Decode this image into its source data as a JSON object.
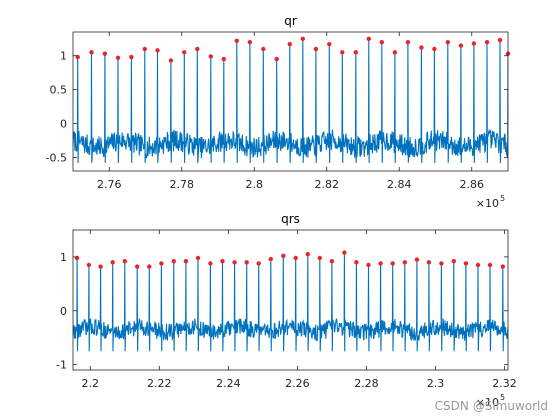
{
  "page": {
    "watermark": "CSDN @Simuworld"
  },
  "colors": {
    "signal": "#0072BD",
    "peak": "#E8262A",
    "axis": "#262626",
    "bg": "#ffffff"
  },
  "chart_data": [
    {
      "type": "line",
      "title": "qr",
      "xlabel": "",
      "ylabel": "",
      "xlim": [
        275000,
        287000
      ],
      "ylim": [
        -0.7,
        1.35
      ],
      "xticks": [
        276000,
        278000,
        280000,
        282000,
        284000,
        286000
      ],
      "xticklabels": [
        "2.76",
        "2.78",
        "2.8",
        "2.82",
        "2.84",
        "2.86"
      ],
      "yticks": [
        -0.5,
        0,
        0.5,
        1
      ],
      "yticklabels": [
        "-0.5",
        "0",
        "0.5",
        "1"
      ],
      "x_exponent_label": "×10",
      "x_exponent_power": "5",
      "grid": false,
      "series": [
        {
          "kind": "ecg-with-peaks",
          "baseline": -0.3,
          "trough": -0.58,
          "peaks_x": [
            275130,
            275510,
            275880,
            276240,
            276610,
            276980,
            277330,
            277700,
            278070,
            278430,
            278800,
            279160,
            279520,
            279880,
            280250,
            280620,
            280980,
            281340,
            281700,
            282070,
            282430,
            282800,
            283160,
            283520,
            283880,
            284240,
            284610,
            284970,
            285340,
            285700,
            286060,
            286420,
            286780,
            287000
          ],
          "peaks_y": [
            0.98,
            1.05,
            1.03,
            0.97,
            0.98,
            1.1,
            1.08,
            0.93,
            1.05,
            1.1,
            0.99,
            0.95,
            1.22,
            1.2,
            1.1,
            0.95,
            1.17,
            1.25,
            1.1,
            1.17,
            1.05,
            1.05,
            1.25,
            1.2,
            1.05,
            1.2,
            1.12,
            1.1,
            1.2,
            1.15,
            1.18,
            1.2,
            1.23,
            1.03
          ]
        }
      ]
    },
    {
      "type": "line",
      "title": "qrs",
      "xlabel": "",
      "ylabel": "",
      "xlim": [
        219500,
        232100
      ],
      "ylim": [
        -1.1,
        1.5
      ],
      "xticks": [
        220000,
        222000,
        224000,
        226000,
        228000,
        230000,
        232000
      ],
      "xticklabels": [
        "2.2",
        "2.22",
        "2.24",
        "2.26",
        "2.28",
        "2.3",
        "2.32"
      ],
      "yticks": [
        -1,
        0,
        1
      ],
      "yticklabels": [
        "-1",
        "0",
        "1"
      ],
      "x_exponent_label": "×10",
      "x_exponent_power": "5",
      "grid": false,
      "series": [
        {
          "kind": "ecg-with-peaks",
          "baseline": -0.35,
          "trough": -0.75,
          "peaks_x": [
            219620,
            219960,
            220300,
            220650,
            221000,
            221360,
            221710,
            222060,
            222420,
            222770,
            223120,
            223480,
            223830,
            224180,
            224530,
            224880,
            225230,
            225590,
            225950,
            226300,
            226650,
            227000,
            227360,
            227710,
            228060,
            228410,
            228760,
            229110,
            229460,
            229810,
            230170,
            230530,
            230880,
            231230,
            231580,
            231950
          ],
          "peaks_y": [
            0.98,
            0.85,
            0.82,
            0.9,
            0.92,
            0.82,
            0.82,
            0.88,
            0.92,
            0.92,
            0.98,
            0.88,
            0.92,
            0.9,
            0.9,
            0.88,
            0.96,
            1.02,
            0.98,
            1.05,
            0.98,
            0.92,
            1.08,
            0.9,
            0.85,
            0.88,
            0.88,
            0.9,
            0.95,
            0.9,
            0.88,
            0.92,
            0.88,
            0.85,
            0.85,
            0.82
          ]
        }
      ]
    }
  ]
}
